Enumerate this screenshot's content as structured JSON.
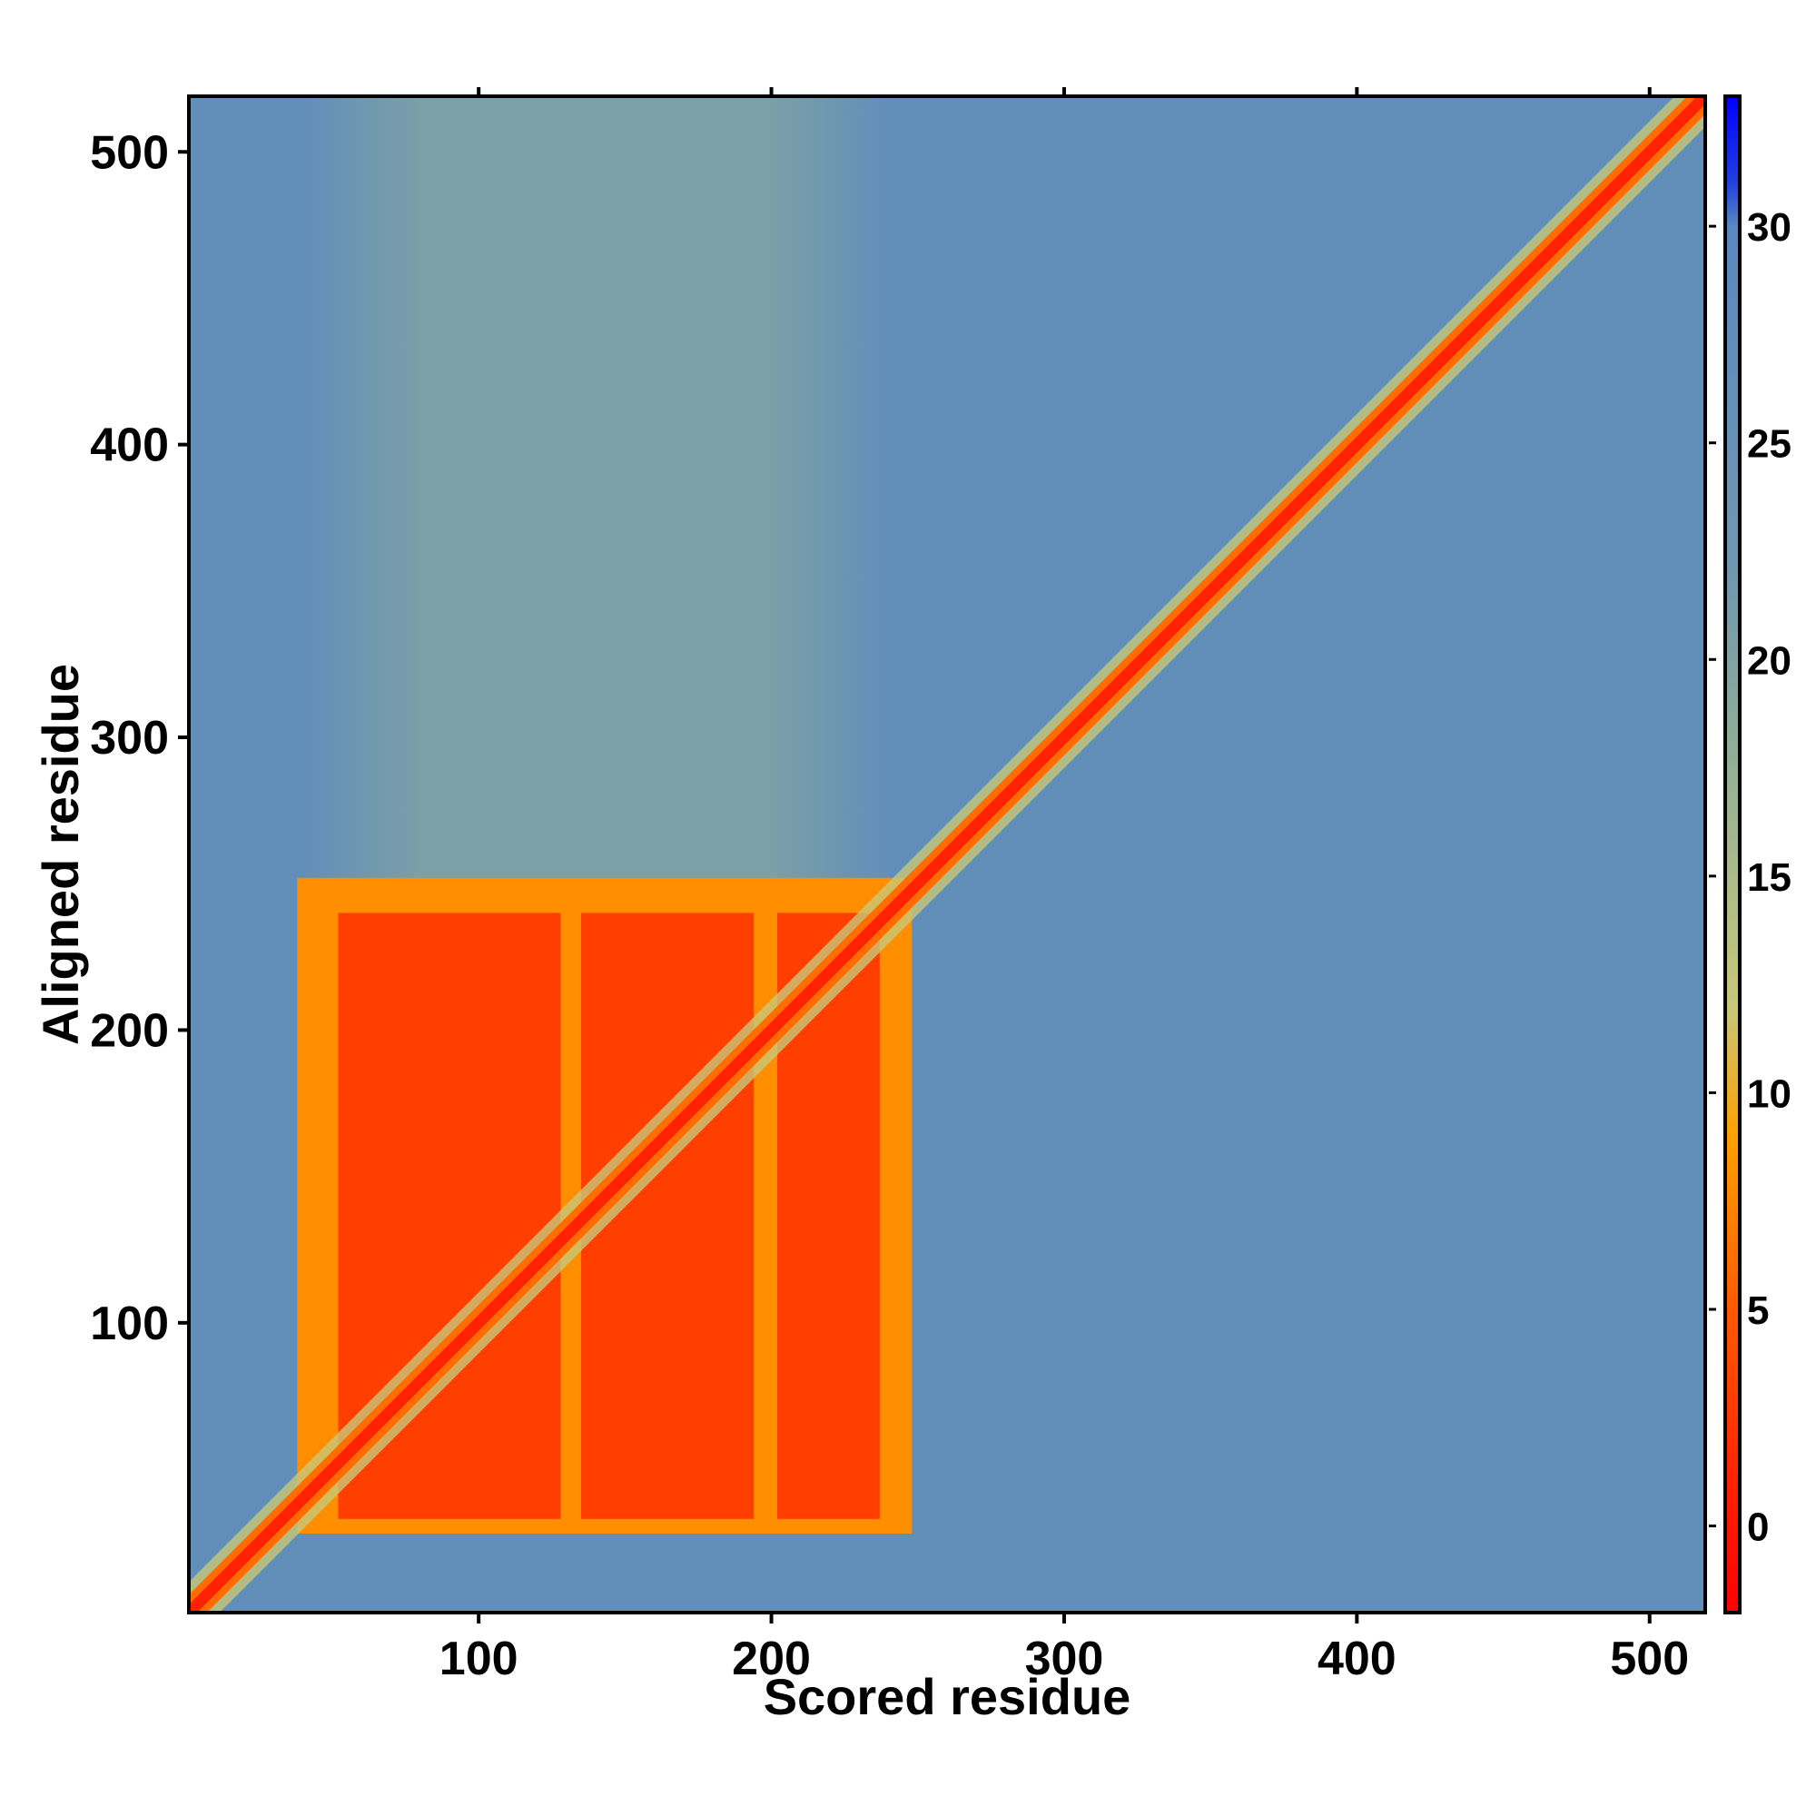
{
  "chart_data": {
    "type": "heatmap",
    "title": "",
    "xlabel": "Scored residue",
    "ylabel": "Aligned residue",
    "xlim": [
      1,
      519
    ],
    "ylim": [
      1,
      519
    ],
    "x_ticks": [
      100,
      200,
      300,
      400,
      500
    ],
    "y_ticks": [
      100,
      200,
      300,
      400,
      500
    ],
    "colorbar": {
      "range": [
        -2,
        33
      ],
      "ticks": [
        0,
        5,
        10,
        15,
        20,
        25,
        30
      ],
      "stops": [
        {
          "value": -2,
          "color": "#ff0000"
        },
        {
          "value": 1,
          "color": "#ff2200"
        },
        {
          "value": 5,
          "color": "#ff5a00"
        },
        {
          "value": 9,
          "color": "#ffa000"
        },
        {
          "value": 12,
          "color": "#c8c878"
        },
        {
          "value": 18,
          "color": "#8fae98"
        },
        {
          "value": 22,
          "color": "#6f98b0"
        },
        {
          "value": 26,
          "color": "#6490b8"
        },
        {
          "value": 30,
          "color": "#5a88c0"
        },
        {
          "value": 31,
          "color": "#2040e0"
        },
        {
          "value": 33,
          "color": "#0000ff"
        }
      ]
    },
    "background_value": 27,
    "regions": [
      {
        "label": "domain block part 1",
        "x_range": [
          52,
          128
        ],
        "y_range": [
          33,
          240
        ],
        "value": 3
      },
      {
        "label": "domain block part 2",
        "x_range": [
          135,
          194
        ],
        "y_range": [
          33,
          240
        ],
        "value": 3
      },
      {
        "label": "domain block part 3",
        "x_range": [
          202,
          237
        ],
        "y_range": [
          33,
          240
        ],
        "value": 3
      },
      {
        "label": "domain block fringe",
        "x_range": [
          38,
          248
        ],
        "y_range": [
          28,
          252
        ],
        "value": 8
      },
      {
        "label": "vertical light band",
        "x_range": [
          40,
          240
        ],
        "y_range": [
          240,
          519
        ],
        "value": 20
      },
      {
        "label": "diagonal",
        "x_range": [
          1,
          519
        ],
        "y_range": [
          1,
          519
        ],
        "value": 1
      }
    ]
  }
}
